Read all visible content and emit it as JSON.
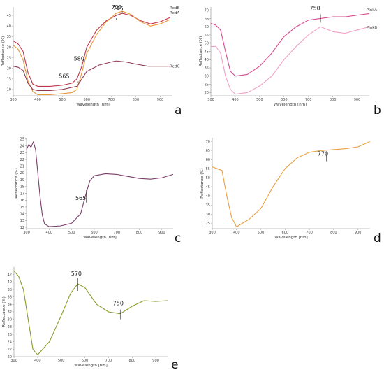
{
  "chart_data": [
    {
      "panel": "a",
      "type": "line",
      "xlabel": "Wavelength [nm]",
      "ylabel": "Reflectance (%)",
      "xlim": [
        300,
        950
      ],
      "ylim": [
        7,
        49
      ],
      "xticks": [
        300,
        400,
        500,
        600,
        700,
        800,
        900
      ],
      "yticks": [
        10,
        15,
        20,
        25,
        30,
        35,
        40,
        45
      ],
      "series": [
        {
          "name": "RedB",
          "color": "#c0354a",
          "x": [
            300,
            320,
            340,
            360,
            380,
            400,
            450,
            500,
            540,
            560,
            580,
            600,
            640,
            680,
            720,
            745,
            780,
            820,
            860,
            900,
            940
          ],
          "y": [
            33,
            31.5,
            28,
            18,
            12.5,
            11.5,
            11.5,
            12,
            13,
            15,
            21,
            30,
            38,
            42.5,
            45,
            46,
            45,
            42.5,
            41,
            42,
            44
          ]
        },
        {
          "name": "RedA",
          "color": "#e8983a",
          "x": [
            300,
            320,
            340,
            360,
            380,
            400,
            450,
            500,
            540,
            560,
            580,
            600,
            640,
            680,
            720,
            745,
            780,
            820,
            860,
            900,
            940
          ],
          "y": [
            31,
            29,
            24,
            14,
            9,
            7.5,
            7.5,
            8,
            8.5,
            10,
            18,
            27,
            36,
            42,
            46,
            47,
            45.5,
            42,
            40,
            41,
            43
          ]
        },
        {
          "name": "RedC",
          "color": "#8f3a52",
          "x": [
            300,
            320,
            340,
            360,
            380,
            400,
            450,
            500,
            560,
            600,
            650,
            700,
            720,
            760,
            800,
            850,
            900,
            940
          ],
          "y": [
            21,
            20.5,
            19,
            13,
            10,
            9.5,
            9.5,
            10,
            11.5,
            18.5,
            21.5,
            23,
            23.5,
            23,
            22,
            21,
            21,
            21
          ]
        }
      ],
      "annotations": [
        {
          "label": "745",
          "x": 745
        },
        {
          "label": "580",
          "x": 580
        },
        {
          "label": "720",
          "x": 720
        },
        {
          "label": "565",
          "x": 565
        }
      ]
    },
    {
      "panel": "b",
      "type": "line",
      "xlabel": "Wavelength [nm]",
      "ylabel": "Reflectance (%)",
      "xlim": [
        300,
        950
      ],
      "ylim": [
        18,
        72
      ],
      "xticks": [
        300,
        400,
        500,
        600,
        700,
        800,
        900
      ],
      "yticks": [
        20,
        25,
        30,
        35,
        40,
        45,
        50,
        55,
        60,
        65,
        70
      ],
      "series": [
        {
          "name": "PinkA",
          "color": "#d84a90",
          "x": [
            300,
            320,
            340,
            360,
            380,
            400,
            450,
            500,
            550,
            600,
            650,
            700,
            750,
            800,
            850,
            900,
            950
          ],
          "y": [
            62,
            61,
            58,
            45,
            33,
            30,
            31,
            36,
            44,
            54,
            60,
            64,
            65,
            66,
            66,
            67,
            68
          ]
        },
        {
          "name": "PinkB",
          "color": "#f0a0c6",
          "x": [
            300,
            320,
            340,
            360,
            380,
            400,
            450,
            500,
            550,
            600,
            650,
            700,
            750,
            800,
            850,
            900,
            950
          ],
          "y": [
            48,
            48,
            44,
            30,
            22,
            19,
            20,
            24,
            30,
            40,
            48,
            55,
            60,
            57,
            56,
            58,
            60
          ]
        }
      ],
      "annotations": [
        {
          "label": "750",
          "x": 750
        }
      ]
    },
    {
      "panel": "c",
      "type": "line",
      "xlabel": "Wavelength [nm]",
      "ylabel": "Reflectance (%)",
      "xlim": [
        300,
        950
      ],
      "ylim": [
        11.8,
        25.2
      ],
      "xticks": [
        300,
        400,
        500,
        600,
        700,
        800,
        900
      ],
      "yticks": [
        12,
        13,
        14,
        15,
        16,
        17,
        18,
        19,
        20,
        21,
        22,
        23,
        24,
        25
      ],
      "series": [
        {
          "name": "",
          "color": "#7a3d6a",
          "x": [
            300,
            310,
            320,
            330,
            340,
            350,
            360,
            370,
            380,
            400,
            450,
            500,
            540,
            560,
            580,
            600,
            650,
            700,
            750,
            800,
            850,
            900,
            950
          ],
          "y": [
            23.5,
            24.2,
            23.8,
            24.6,
            23.5,
            20,
            16.5,
            13.8,
            12.5,
            12.1,
            12.2,
            12.6,
            14,
            16.5,
            18.8,
            19.6,
            19.9,
            19.8,
            19.5,
            19.2,
            19.1,
            19.3,
            19.8
          ]
        }
      ],
      "annotations": [
        {
          "label": "565",
          "x": 565
        }
      ]
    },
    {
      "panel": "d",
      "type": "line",
      "xlabel": "Wavelength [nm]",
      "ylabel": "Reflectance (%)",
      "xlim": [
        300,
        950
      ],
      "ylim": [
        22,
        72
      ],
      "xticks": [
        300,
        400,
        500,
        600,
        700,
        800,
        900
      ],
      "yticks": [
        25,
        30,
        35,
        40,
        45,
        50,
        55,
        60,
        65,
        70
      ],
      "series": [
        {
          "name": "",
          "color": "#e8a040",
          "x": [
            300,
            320,
            340,
            360,
            380,
            400,
            450,
            500,
            550,
            600,
            650,
            700,
            750,
            800,
            850,
            900,
            950
          ],
          "y": [
            56,
            55,
            54,
            40,
            28,
            23,
            27,
            33,
            45,
            55,
            61,
            64,
            65,
            65.5,
            66,
            67,
            70
          ]
        }
      ],
      "annotations": [
        {
          "label": "770",
          "x": 770
        }
      ]
    },
    {
      "panel": "e",
      "type": "line",
      "xlabel": "Wavelength [nm]",
      "ylabel": "Reflectance (%)",
      "xlim": [
        300,
        950
      ],
      "ylim": [
        20,
        44
      ],
      "xticks": [
        300,
        400,
        500,
        600,
        700,
        800,
        900
      ],
      "yticks": [
        20,
        22,
        24,
        26,
        28,
        30,
        32,
        34,
        36,
        38,
        40,
        42
      ],
      "series": [
        {
          "name": "",
          "color": "#8a9a2a",
          "x": [
            300,
            320,
            340,
            360,
            380,
            400,
            450,
            500,
            540,
            570,
            600,
            650,
            700,
            750,
            800,
            850,
            900,
            950
          ],
          "y": [
            43,
            41.5,
            38,
            30,
            22,
            20.5,
            24,
            31,
            37,
            39.5,
            38.5,
            34,
            32,
            31.5,
            33.5,
            35,
            34.8,
            35
          ]
        }
      ],
      "annotations": [
        {
          "label": "570",
          "x": 570
        },
        {
          "label": "750",
          "x": 750
        }
      ]
    }
  ]
}
